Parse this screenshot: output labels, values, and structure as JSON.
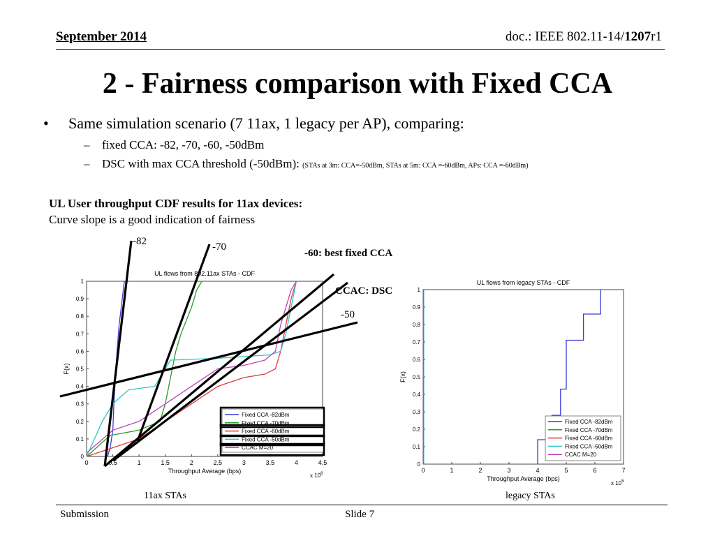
{
  "header": {
    "date": "September 2014",
    "doc_prefix": "doc.: IEEE 802.11-14/",
    "doc_number": "1207",
    "doc_suffix": "r1"
  },
  "title": "2 - Fairness comparison with Fixed CCA",
  "bullets": {
    "main": "Same simulation scenario (7 11ax, 1 legacy per AP), comparing:",
    "sub1": "fixed CCA: -82, -70, -60, -50dBm",
    "sub2": "DSC with max CCA threshold (-50dBm):",
    "sub2_small": "(STAs at 3m: CCA=-50dBm, STAs at 5m: CCA =-60dBm, APs: CCA =-60dBm)"
  },
  "caption": {
    "bold": "UL User throughput CDF results for 11ax devices:",
    "normal": "Curve slope is a good indication of fairness"
  },
  "annotations": {
    "a82": "-82",
    "a70": "-70",
    "a60": "-60: best fixed CCA",
    "accac": "CCAC: DSC",
    "a50": "-50"
  },
  "bottom_labels": {
    "left": "11ax STAs",
    "right": "legacy STAs"
  },
  "footer": {
    "left": "Submission",
    "slide": "Slide 7"
  },
  "colors": {
    "fixed_82": "#3a3ad6",
    "fixed_70": "#2a9a2a",
    "fixed_60": "#e03a3a",
    "fixed_50": "#28c8c8",
    "ccac": "#c040c0"
  },
  "chart_data": [
    {
      "type": "line",
      "title": "UL flows from 802.11ax STAs - CDF",
      "xlabel": "Throughput Average (bps)",
      "ylabel": "F(x)",
      "x_multiplier": "x 10^6",
      "xlim": [
        0,
        4.5
      ],
      "ylim": [
        0,
        1
      ],
      "xticks": [
        "0",
        "0.5",
        "1",
        "1.5",
        "2",
        "2.5",
        "3",
        "3.5",
        "4",
        "4.5"
      ],
      "yticks": [
        "0",
        "0.1",
        "0.2",
        "0.3",
        "0.4",
        "0.5",
        "0.6",
        "0.7",
        "0.8",
        "0.9",
        "1"
      ],
      "grid": false,
      "legend_position": "bottom-right",
      "series": [
        {
          "name": "Fixed CCA -82dBm",
          "color": "#3a3ad6",
          "x": [
            0.4,
            0.45,
            0.5,
            0.52,
            0.55,
            0.58,
            0.62,
            0.66,
            0.7,
            0.72
          ],
          "y": [
            0.0,
            0.05,
            0.15,
            0.3,
            0.45,
            0.6,
            0.75,
            0.85,
            0.95,
            1.0
          ]
        },
        {
          "name": "Fixed CCA -70dBm",
          "color": "#2a9a2a",
          "x": [
            0.0,
            0.45,
            1.0,
            1.4,
            1.5,
            1.6,
            1.7,
            1.8,
            2.0,
            2.1,
            2.2
          ],
          "y": [
            0.0,
            0.12,
            0.15,
            0.2,
            0.3,
            0.45,
            0.6,
            0.7,
            0.85,
            0.95,
            1.0
          ]
        },
        {
          "name": "Fixed CCA -60dBm",
          "color": "#e03a3a",
          "x": [
            0.0,
            0.5,
            1.0,
            1.5,
            2.0,
            2.5,
            3.0,
            3.4,
            3.6,
            3.7,
            3.8,
            3.9,
            4.0
          ],
          "y": [
            0.0,
            0.05,
            0.1,
            0.2,
            0.3,
            0.4,
            0.45,
            0.47,
            0.5,
            0.6,
            0.75,
            0.9,
            1.0
          ]
        },
        {
          "name": "Fixed CCA -50dBm",
          "color": "#28c8c8",
          "x": [
            0.0,
            0.3,
            0.5,
            0.8,
            1.3,
            1.6,
            2.5,
            3.0,
            3.5,
            3.7,
            3.8,
            3.9,
            4.0
          ],
          "y": [
            0.0,
            0.2,
            0.3,
            0.38,
            0.4,
            0.55,
            0.56,
            0.57,
            0.58,
            0.6,
            0.7,
            0.85,
            1.0
          ]
        },
        {
          "name": "CCAC M=20",
          "color": "#c040c0",
          "x": [
            0.0,
            0.5,
            1.0,
            1.5,
            2.0,
            2.5,
            3.0,
            3.4,
            3.6,
            3.7,
            3.8,
            3.9,
            4.0
          ],
          "y": [
            0.02,
            0.15,
            0.2,
            0.3,
            0.4,
            0.5,
            0.52,
            0.55,
            0.6,
            0.75,
            0.85,
            0.95,
            1.0
          ]
        }
      ]
    },
    {
      "type": "line",
      "title": "UL flows from legacy STAs - CDF",
      "xlabel": "Throughput Average (bps)",
      "ylabel": "F(x)",
      "x_multiplier": "x 10^5",
      "xlim": [
        0,
        7
      ],
      "ylim": [
        0,
        1
      ],
      "xticks": [
        "0",
        "1",
        "2",
        "3",
        "4",
        "5",
        "6",
        "7"
      ],
      "yticks": [
        "0",
        "0.1",
        "0.2",
        "0.3",
        "0.4",
        "0.5",
        "0.6",
        "0.7",
        "0.8",
        "0.9",
        "1"
      ],
      "grid": false,
      "legend_position": "bottom-right",
      "series": [
        {
          "name": "Fixed CCA -82dBm",
          "color": "#3a3ad6",
          "x": [
            4.0,
            4.0,
            4.5,
            4.5,
            4.8,
            4.8,
            5.0,
            5.0,
            5.6,
            5.6,
            6.2,
            6.2
          ],
          "y": [
            0.0,
            0.14,
            0.14,
            0.28,
            0.28,
            0.43,
            0.43,
            0.71,
            0.71,
            0.86,
            0.86,
            1.0
          ]
        },
        {
          "name": "Fixed CCA -70dBm",
          "color": "#2a9a2a",
          "x": [
            0.02,
            0.02,
            0.05
          ],
          "y": [
            0.0,
            1.0,
            1.0
          ]
        },
        {
          "name": "Fixed CCA -60dBm",
          "color": "#e03a3a",
          "x": [
            0.02,
            0.02,
            0.05
          ],
          "y": [
            0.0,
            1.0,
            1.0
          ]
        },
        {
          "name": "Fixed CCA -50dBm",
          "color": "#28c8c8",
          "x": [
            0.02,
            0.02,
            0.05
          ],
          "y": [
            0.0,
            1.0,
            1.0
          ]
        },
        {
          "name": "CCAC M=20",
          "color": "#c040c0",
          "x": [
            0.01,
            0.01,
            0.03
          ],
          "y": [
            0.0,
            1.0,
            1.0
          ]
        }
      ]
    }
  ]
}
